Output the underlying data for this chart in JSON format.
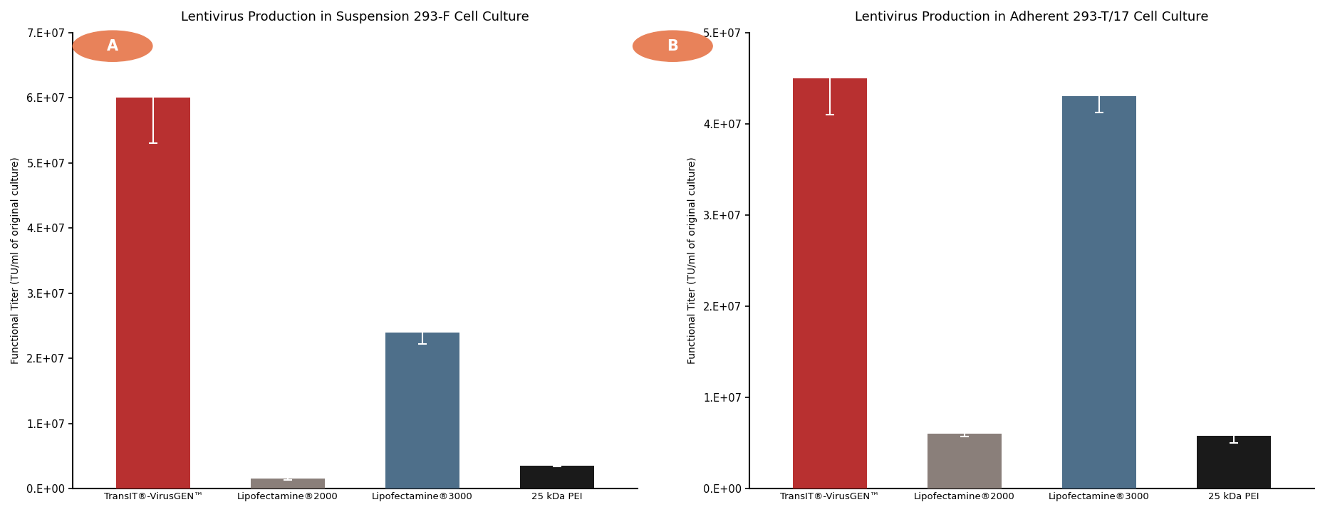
{
  "chart_A": {
    "title": "Lentivirus Production in Suspension 293-F Cell Culture",
    "values": [
      60000000.0,
      1500000.0,
      24000000.0,
      3500000.0
    ],
    "errors": [
      7000000.0,
      150000.0,
      1800000.0,
      150000.0
    ],
    "colors": [
      "#b83030",
      "#8a7f7a",
      "#4e6f8a",
      "#1a1a1a"
    ],
    "ylim": [
      0,
      70000000.0
    ],
    "yticks": [
      0,
      10000000.0,
      20000000.0,
      30000000.0,
      40000000.0,
      50000000.0,
      60000000.0,
      70000000.0
    ],
    "ylabel": "Functional Titer (TU/ml of original culture)"
  },
  "chart_B": {
    "title": "Lentivirus Production in Adherent 293-T/17 Cell Culture",
    "values": [
      45000000.0,
      6000000.0,
      43000000.0,
      5800000.0
    ],
    "errors": [
      4000000.0,
      300000.0,
      1800000.0,
      800000.0
    ],
    "colors": [
      "#b83030",
      "#8a7f7a",
      "#4e6f8a",
      "#1a1a1a"
    ],
    "ylim": [
      0,
      50000000.0
    ],
    "yticks": [
      0,
      10000000.0,
      20000000.0,
      30000000.0,
      40000000.0,
      50000000.0
    ],
    "ylabel": "Functional Titer (TU/ml of original culture)"
  },
  "categories": [
    "TransIT®-VirusGEN™",
    "Lipofectamine®2000",
    "Lipofectamine®3000",
    "25 kDa PEI"
  ],
  "background_color": "#ffffff",
  "label_A": "A",
  "label_B": "B",
  "label_circle_color": "#e8825a",
  "title_fontsize": 13,
  "axis_label_fontsize": 10,
  "tick_fontsize": 10.5,
  "xticklabel_fontsize": 9.5
}
